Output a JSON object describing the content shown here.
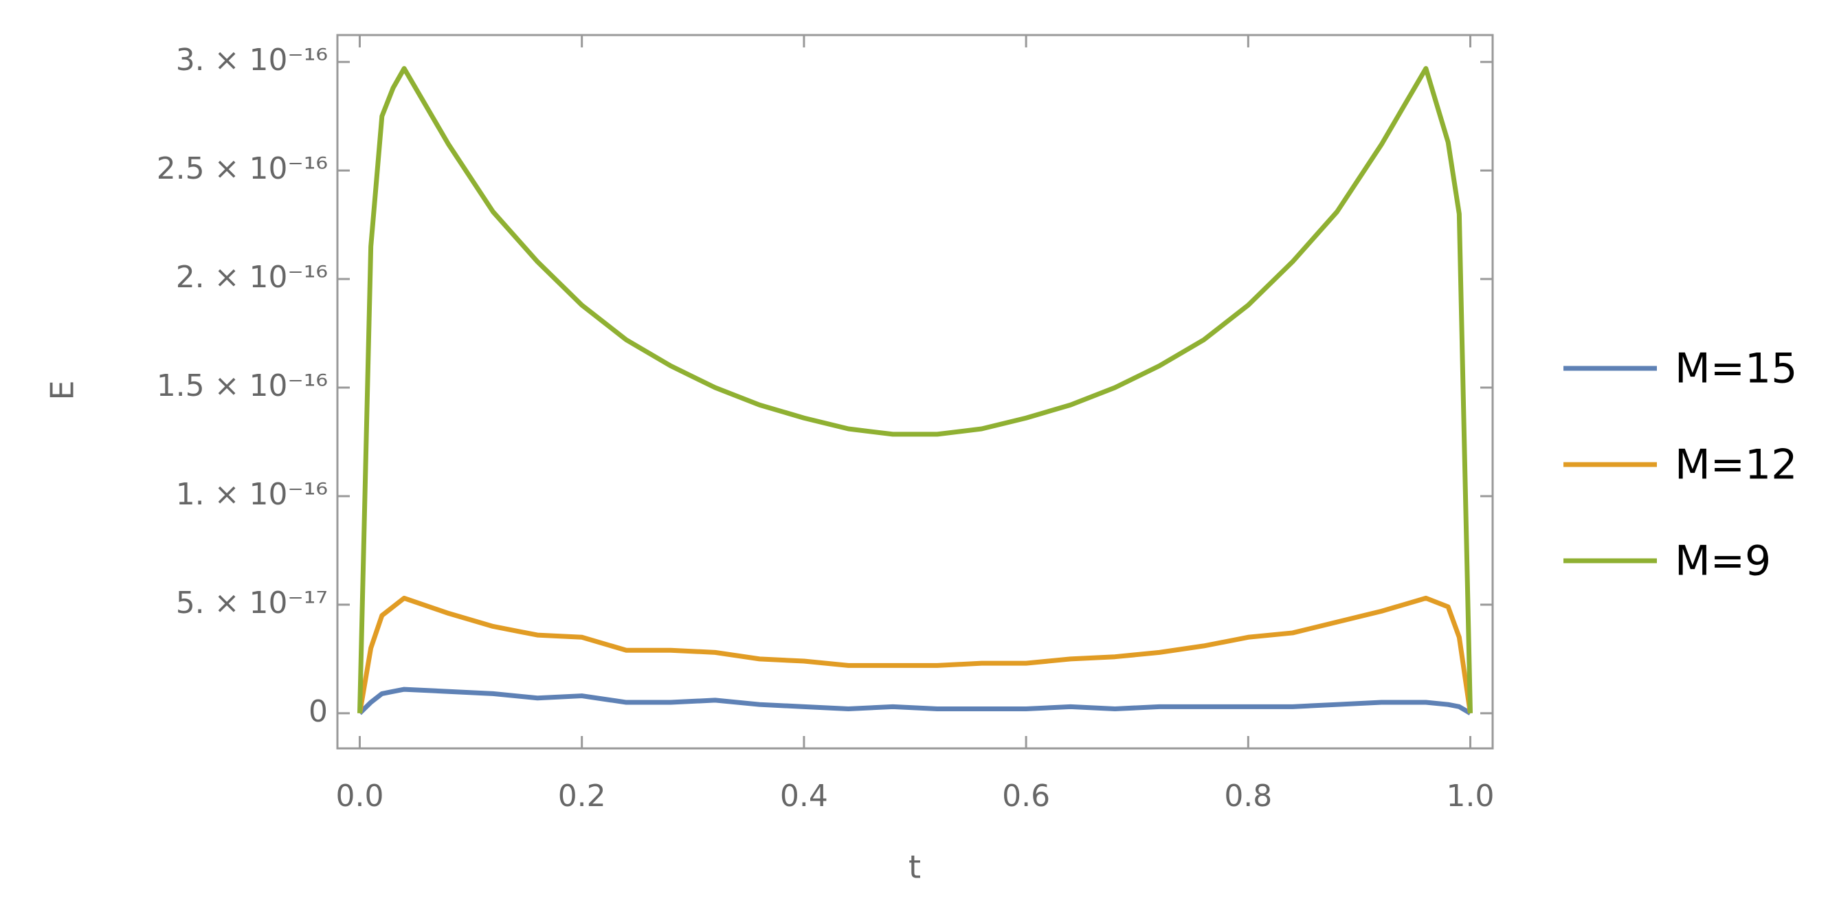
{
  "chart_data": {
    "type": "line",
    "x_label": "t",
    "y_label": "E",
    "xlim": [
      -0.0201,
      1.0201
    ],
    "ylim": [
      -1.62e-17,
      3.124e-16
    ],
    "xticks": [
      {
        "value": 0,
        "label": "0.0"
      },
      0.2,
      0.4,
      0.6,
      0.8,
      {
        "value": 1,
        "label": "1.0"
      }
    ],
    "yticks": [
      0,
      {
        "value": 5e-17,
        "label": "5. × 10⁻¹⁷"
      },
      {
        "value": 1e-16,
        "label": "1. × 10⁻¹⁶"
      },
      {
        "value": 1.5e-16,
        "label": "1.5 × 10⁻¹⁶"
      },
      {
        "value": 2e-16,
        "label": "2. × 10⁻¹⁶"
      },
      {
        "value": 2.5e-16,
        "label": "2.5 × 10⁻¹⁶"
      },
      {
        "value": 3e-16,
        "label": "3. × 10⁻¹⁶"
      }
    ],
    "legend": "right",
    "x": [
      0,
      0.01,
      0.02,
      0.03,
      0.04,
      0.08,
      0.12,
      0.16,
      0.2,
      0.24,
      0.28,
      0.32,
      0.36,
      0.4,
      0.44,
      0.48,
      0.52,
      0.56,
      0.6,
      0.64,
      0.68,
      0.72,
      0.76,
      0.8,
      0.84,
      0.88,
      0.92,
      0.96,
      0.98,
      0.99,
      1
    ],
    "series": [
      {
        "name": "M=15",
        "color": "#5e81b5",
        "values": [
          0,
          5e-18,
          9e-18,
          1e-17,
          1.1e-17,
          1e-17,
          9e-18,
          7e-18,
          8e-18,
          5e-18,
          5e-18,
          6e-18,
          4e-18,
          3e-18,
          2e-18,
          3e-18,
          2e-18,
          2e-18,
          2e-18,
          3e-18,
          2e-18,
          3e-18,
          3e-18,
          3e-18,
          3e-18,
          4e-18,
          5e-18,
          5e-18,
          4e-18,
          3e-18,
          0
        ]
      },
      {
        "name": "M=12",
        "color": "#e19c24",
        "values": [
          0,
          3e-17,
          4.5e-17,
          4.9e-17,
          5.3e-17,
          4.6e-17,
          4e-17,
          3.6e-17,
          3.5e-17,
          2.9e-17,
          2.9e-17,
          2.8e-17,
          2.5e-17,
          2.4e-17,
          2.2e-17,
          2.2e-17,
          2.2e-17,
          2.3e-17,
          2.3e-17,
          2.5e-17,
          2.6e-17,
          2.8e-17,
          3.1e-17,
          3.5e-17,
          3.7e-17,
          4.2e-17,
          4.7e-17,
          5.3e-17,
          4.9e-17,
          3.5e-17,
          0
        ]
      },
      {
        "name": "M=9",
        "color": "#8fb032",
        "values": [
          0,
          2.15e-16,
          2.75e-16,
          2.88e-16,
          2.97e-16,
          2.62e-16,
          2.31e-16,
          2.08e-16,
          1.88e-16,
          1.72e-16,
          1.6e-16,
          1.5e-16,
          1.42e-16,
          1.36e-16,
          1.31e-16,
          1.285e-16,
          1.285e-16,
          1.31e-16,
          1.36e-16,
          1.42e-16,
          1.5e-16,
          1.6e-16,
          1.72e-16,
          1.88e-16,
          2.08e-16,
          2.31e-16,
          2.62e-16,
          2.97e-16,
          2.63e-16,
          2.3e-16,
          0
        ]
      }
    ]
  }
}
